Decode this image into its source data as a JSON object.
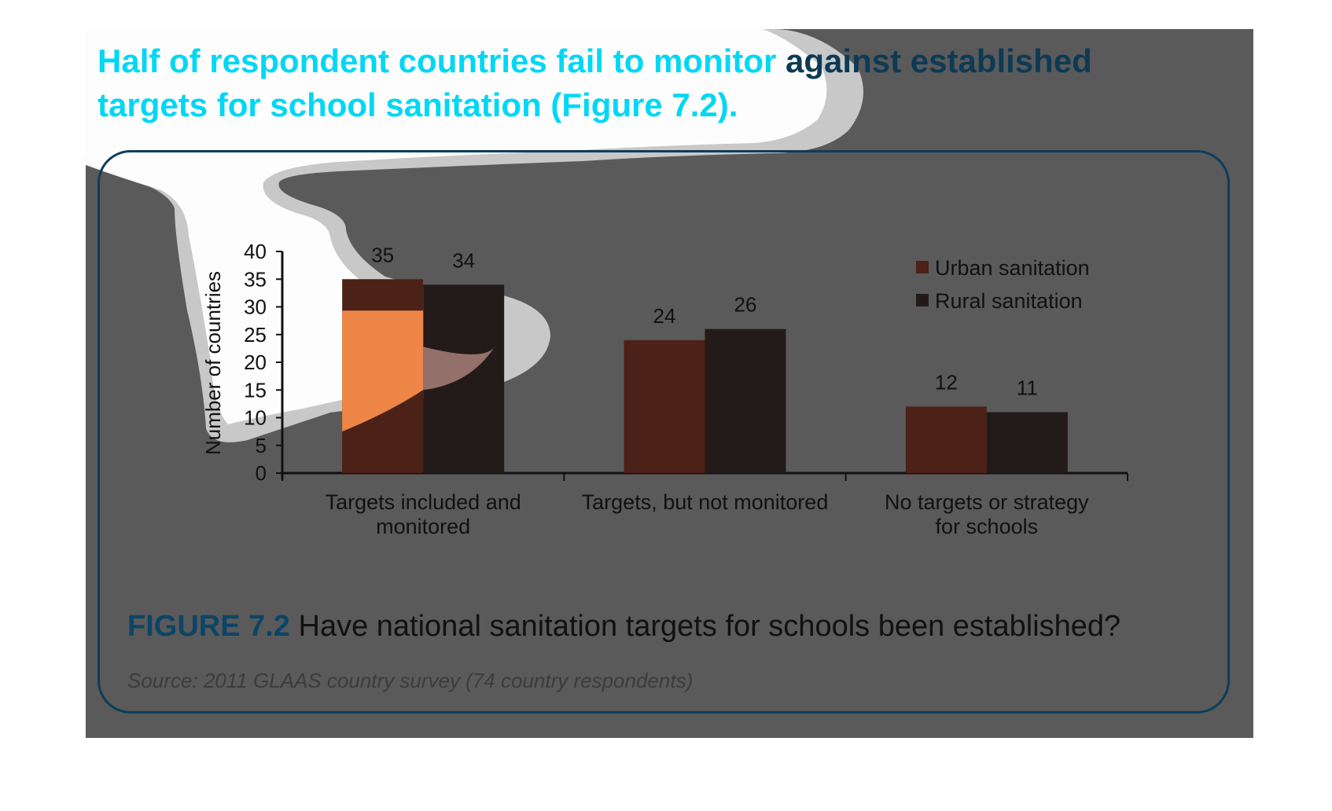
{
  "headline": {
    "part1": "Half of respondent countries fail to monitor ",
    "part2": "against established",
    "part3": "targets for school sanitation (Figure 7.2)."
  },
  "caption": {
    "figure_label": "FIGURE 7.2",
    "text": " Have national sanitation targets for schools been established?"
  },
  "source": "Source: 2011 GLAAS country survey (74 country respondents)",
  "colors": {
    "headline": "#00d7f5",
    "headline_dark": "#0d3a55",
    "urban": "#4c2118",
    "rural": "#231a1a",
    "highlight": "#ff914d",
    "panel": "#5a5a5a"
  },
  "chart_data": {
    "type": "bar",
    "title": "",
    "xlabel": "",
    "ylabel": "Number of countries",
    "ylim": [
      0,
      40
    ],
    "yticks": [
      0,
      5,
      10,
      15,
      20,
      25,
      30,
      35,
      40
    ],
    "categories": [
      [
        "Targets included and",
        "monitored"
      ],
      [
        "Targets, but not monitored"
      ],
      [
        "No targets or strategy",
        "for schools"
      ]
    ],
    "series": [
      {
        "name": "Urban sanitation",
        "values": [
          35,
          24,
          12
        ]
      },
      {
        "name": "Rural sanitation",
        "values": [
          34,
          26,
          11
        ]
      }
    ],
    "data_labels": true,
    "legend": "top-right",
    "grid": false
  }
}
